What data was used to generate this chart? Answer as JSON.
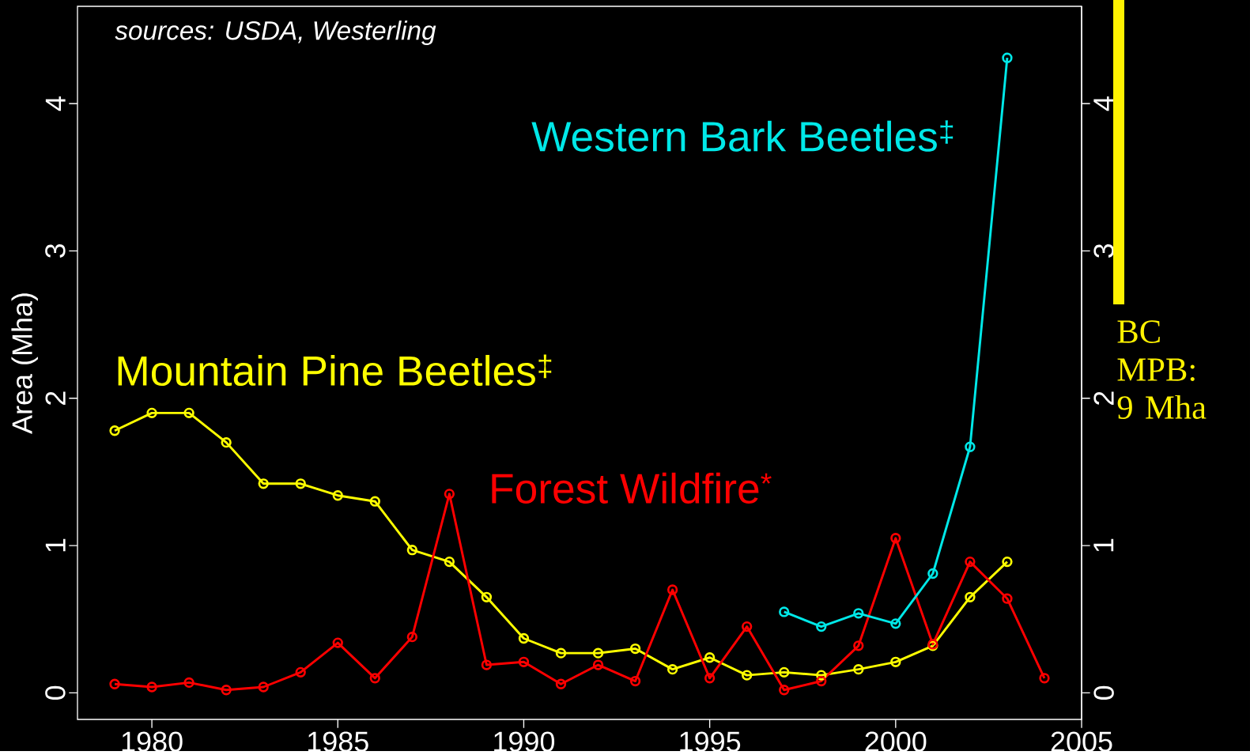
{
  "chart_data": {
    "type": "line",
    "ylabel": "Area (Mha)",
    "xlim": [
      1978,
      2005
    ],
    "ylim": [
      -0.18,
      4.66
    ],
    "xticks": [
      1980,
      1985,
      1990,
      1995,
      2000,
      2005
    ],
    "yticks": [
      0,
      1,
      2,
      3,
      4
    ],
    "y2lim": [
      -0.18,
      4.66
    ],
    "y2ticks": [
      0,
      1,
      2,
      3,
      4
    ],
    "grid": false,
    "legend": false,
    "marker": "circle",
    "line_style": "solid",
    "series": [
      {
        "name": "Mountain Pine Beetles$^{‡}$",
        "color": "#ffff00",
        "x": [
          1979,
          1980,
          1981,
          1982,
          1983,
          1984,
          1985,
          1986,
          1987,
          1988,
          1989,
          1990,
          1991,
          1992,
          1993,
          1994,
          1995,
          1996,
          1997,
          1998,
          1999,
          2000,
          2001,
          2002,
          2003
        ],
        "values": [
          1.78,
          1.9,
          1.9,
          1.7,
          1.42,
          1.42,
          1.34,
          1.3,
          0.97,
          0.89,
          0.65,
          0.37,
          0.27,
          0.27,
          0.3,
          0.16,
          0.24,
          0.12,
          0.14,
          0.12,
          0.16,
          0.21,
          0.32,
          0.65,
          0.89
        ]
      },
      {
        "name": "Forest Wildfire$^{*}$",
        "color": "#ff0000",
        "x": [
          1979,
          1980,
          1981,
          1982,
          1983,
          1984,
          1985,
          1986,
          1987,
          1988,
          1989,
          1990,
          1991,
          1992,
          1993,
          1994,
          1995,
          1996,
          1997,
          1998,
          1999,
          2000,
          2001,
          2002,
          2003,
          2004
        ],
        "values": [
          0.06,
          0.04,
          0.07,
          0.02,
          0.04,
          0.14,
          0.34,
          0.1,
          0.38,
          1.35,
          0.19,
          0.21,
          0.06,
          0.19,
          0.08,
          0.7,
          0.1,
          0.45,
          0.02,
          0.08,
          0.32,
          1.05,
          0.33,
          0.89,
          0.64,
          0.1
        ]
      },
      {
        "name": "Western Bark Beetles$^{‡}$",
        "color": "#00e8e8",
        "x": [
          1997,
          1998,
          1999,
          2000,
          2001,
          2002,
          2003
        ],
        "values": [
          0.55,
          0.45,
          0.54,
          0.47,
          0.81,
          1.67,
          4.31
        ]
      }
    ],
    "annotations": [
      "sources: USDA, Westerling",
      "BC MPB: 9 Mha"
    ]
  }
}
